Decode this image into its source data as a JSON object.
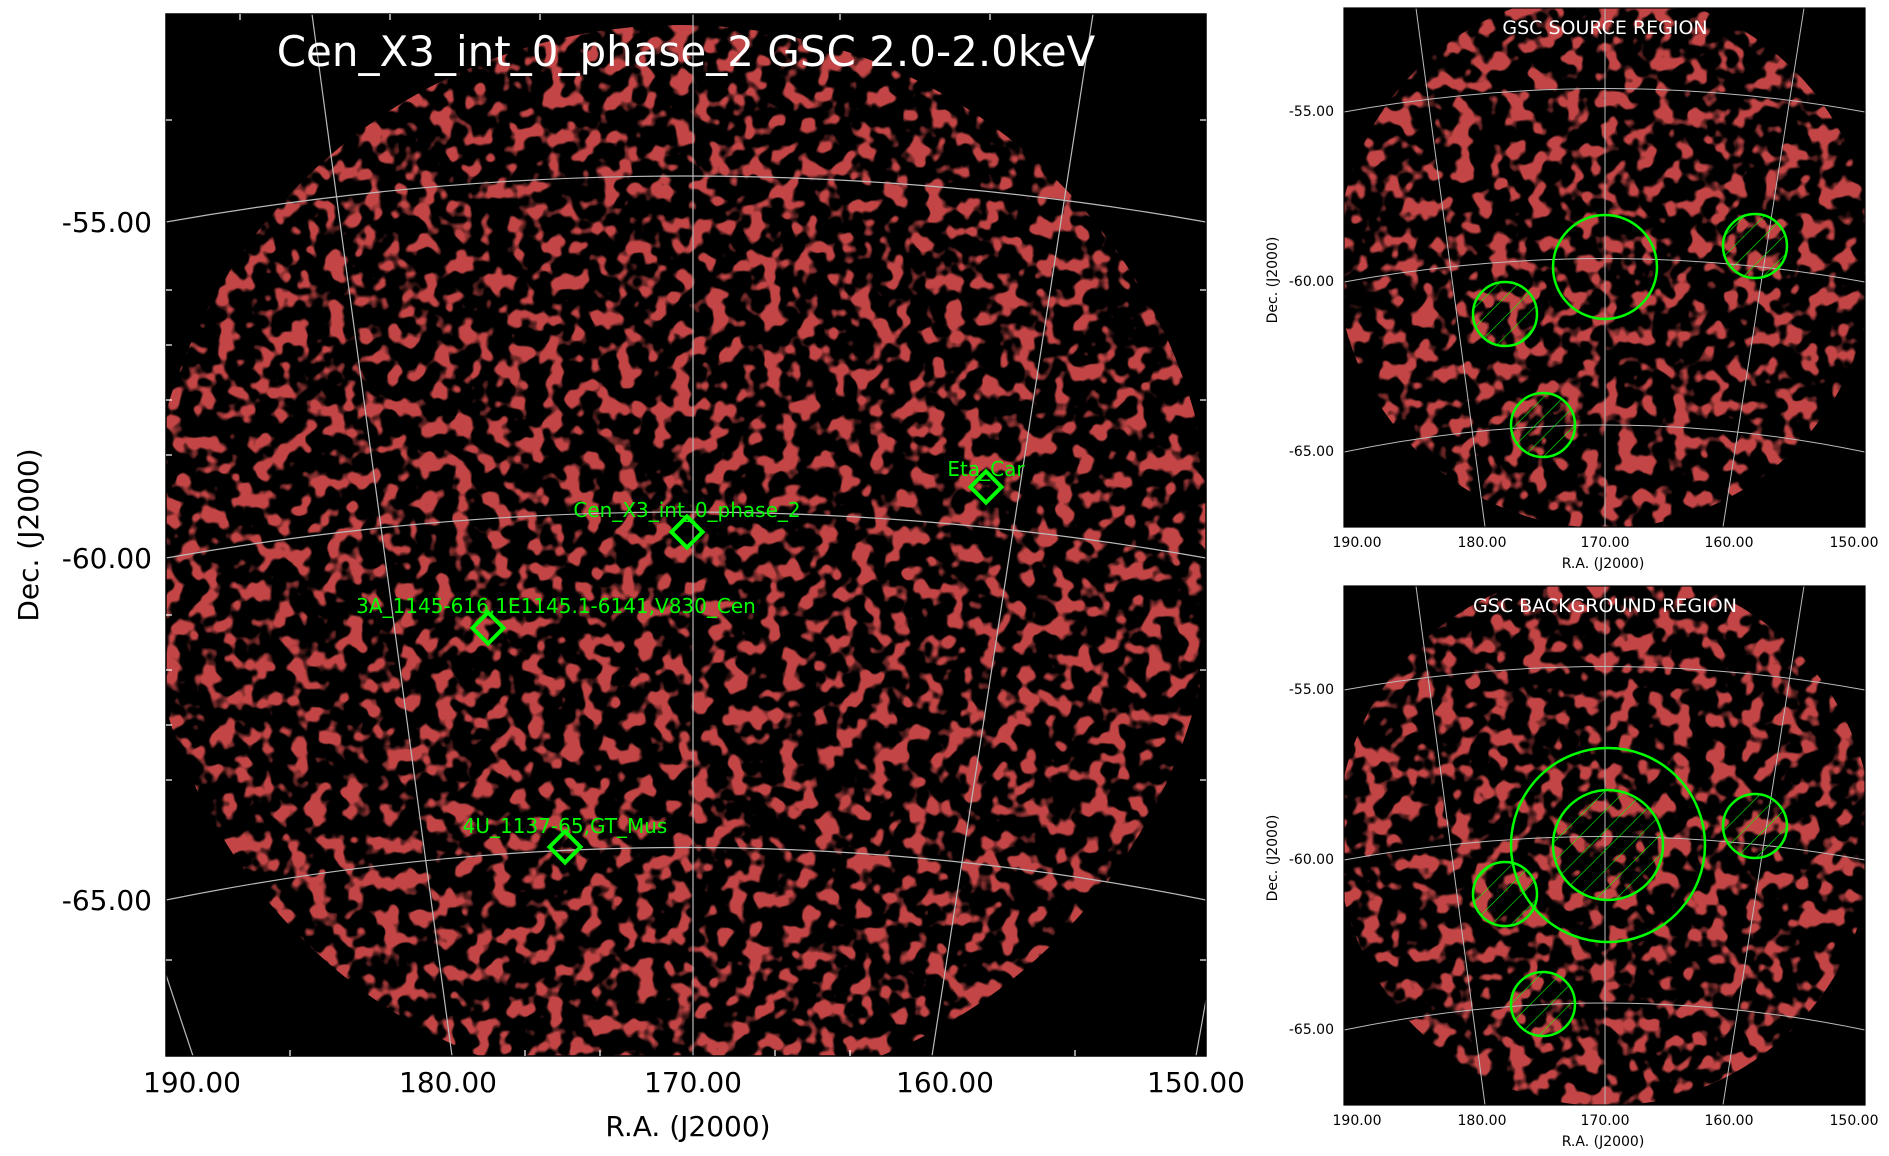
{
  "main": {
    "title": "Cen_X3_int_0_phase_2 GSC 2.0-2.0keV",
    "xlabel": "R.A. (J2000)",
    "ylabel": "Dec. (J2000)",
    "xticks": [
      "190.00",
      "180.00",
      "170.00",
      "160.00",
      "150.00"
    ],
    "yticks": [
      "-55.00",
      "-60.00",
      "-65.00"
    ],
    "sources": [
      {
        "label": "Eta_Car"
      },
      {
        "label": "Cen_X3_int_0_phase_2"
      },
      {
        "label": "3A_1145-616,1E1145.1-6141,V830_Cen"
      },
      {
        "label": "4U_1137-65,GT_Mus"
      }
    ]
  },
  "source_panel": {
    "title": "GSC SOURCE REGION",
    "xlabel": "R.A. (J2000)",
    "ylabel": "Dec. (J2000)",
    "xticks": [
      "190.00",
      "180.00",
      "170.00",
      "160.00",
      "150.00"
    ],
    "yticks": [
      "-55.00",
      "-60.00",
      "-65.00"
    ]
  },
  "background_panel": {
    "title": "GSC BACKGROUND REGION",
    "xlabel": "R.A. (J2000)",
    "ylabel": "Dec. (J2000)",
    "xticks": [
      "190.00",
      "180.00",
      "170.00",
      "160.00",
      "150.00"
    ],
    "yticks": [
      "-55.00",
      "-60.00",
      "-65.00"
    ]
  },
  "colors": {
    "image_background": "#000000",
    "counts": "#8b0f0f",
    "grid": "#bbbbbb",
    "region": "#00ff00"
  }
}
